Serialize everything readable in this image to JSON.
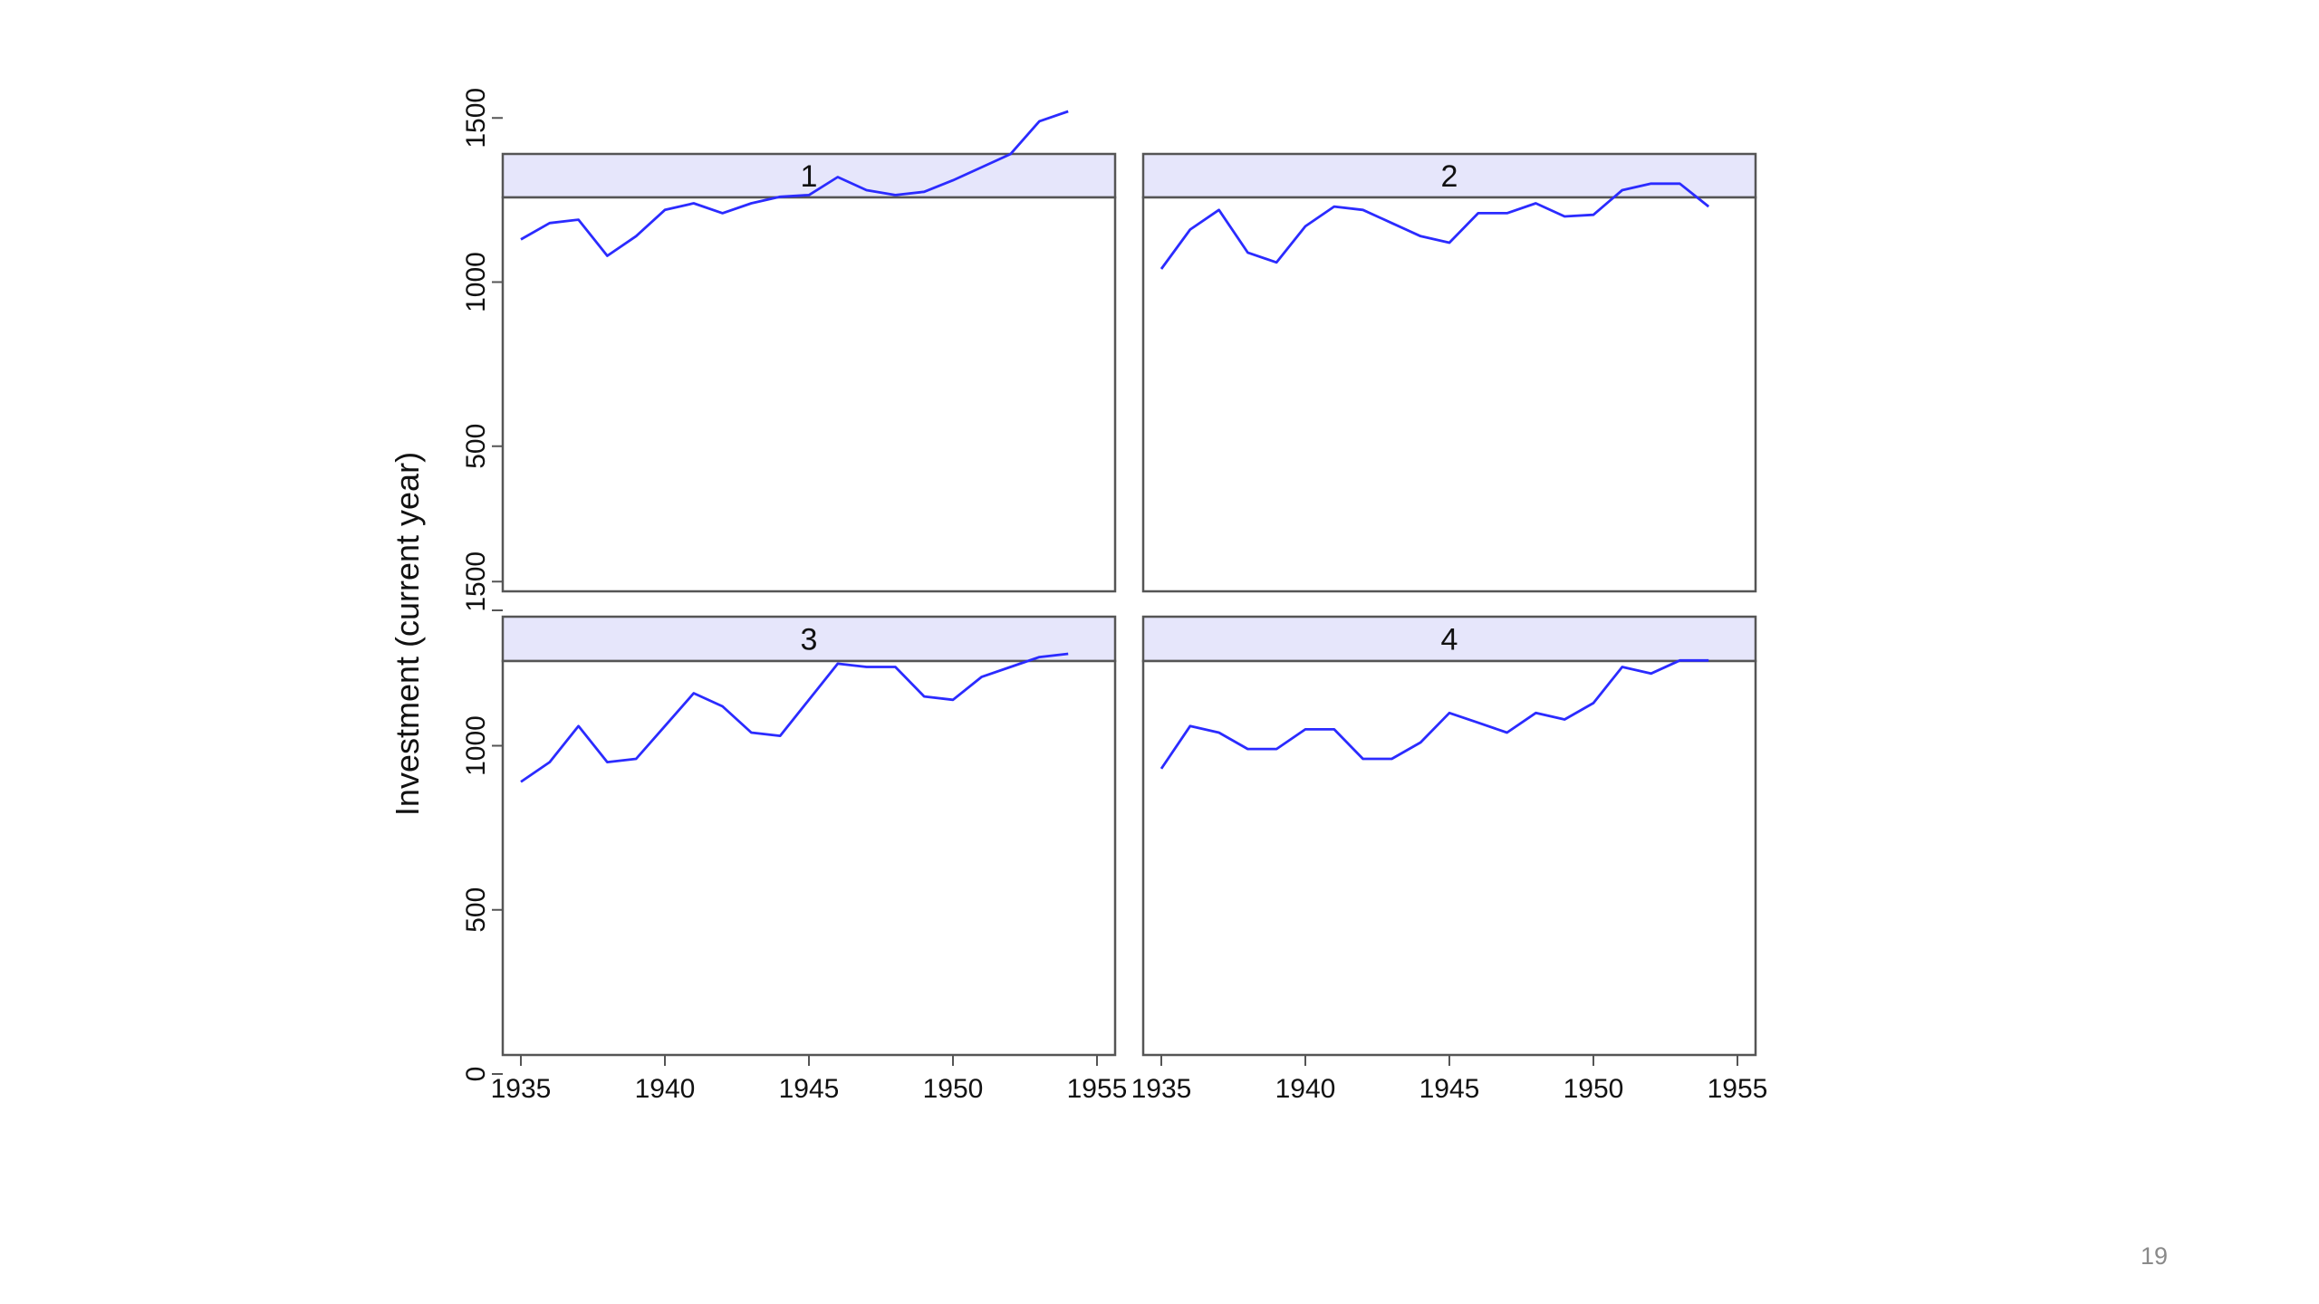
{
  "slide": {
    "page_number": "19"
  },
  "colors": {
    "line": "#2b2bff",
    "panel_header_fill": "#e6e6fb",
    "frame": "#555555",
    "text": "#111111"
  },
  "chart_data": {
    "type": "line",
    "layout": "2x2 panels",
    "ylabel": "Investment (current year)",
    "xlim": [
      1935,
      1955
    ],
    "ylim": [
      0,
      1600
    ],
    "x_ticks": [
      "1935",
      "1940",
      "1945",
      "1950",
      "1955"
    ],
    "y_ticks": [
      "0",
      "500",
      "1000",
      "1500"
    ],
    "x": [
      1935,
      1936,
      1937,
      1938,
      1939,
      1940,
      1941,
      1942,
      1943,
      1944,
      1945,
      1946,
      1947,
      1948,
      1949,
      1950,
      1951,
      1952,
      1953,
      1954
    ],
    "panels": [
      {
        "label": "1",
        "values": [
          1130,
          1180,
          1190,
          1080,
          1140,
          1220,
          1240,
          1210,
          1240,
          1260,
          1265,
          1320,
          1280,
          1265,
          1275,
          1310,
          1350,
          1390,
          1490,
          1520
        ]
      },
      {
        "label": "2",
        "values": [
          1040,
          1160,
          1220,
          1090,
          1060,
          1170,
          1230,
          1220,
          1180,
          1140,
          1120,
          1210,
          1210,
          1240,
          1200,
          1205,
          1280,
          1300,
          1300,
          1230
        ]
      },
      {
        "label": "3",
        "values": [
          890,
          950,
          1060,
          950,
          960,
          1060,
          1160,
          1120,
          1040,
          1030,
          1140,
          1250,
          1240,
          1240,
          1150,
          1140,
          1210,
          1240,
          1270,
          1280
        ]
      },
      {
        "label": "4",
        "values": [
          930,
          1060,
          1040,
          990,
          990,
          1050,
          1050,
          960,
          960,
          1010,
          1100,
          1070,
          1040,
          1100,
          1080,
          1130,
          1240,
          1220,
          1260,
          1260
        ]
      }
    ]
  }
}
